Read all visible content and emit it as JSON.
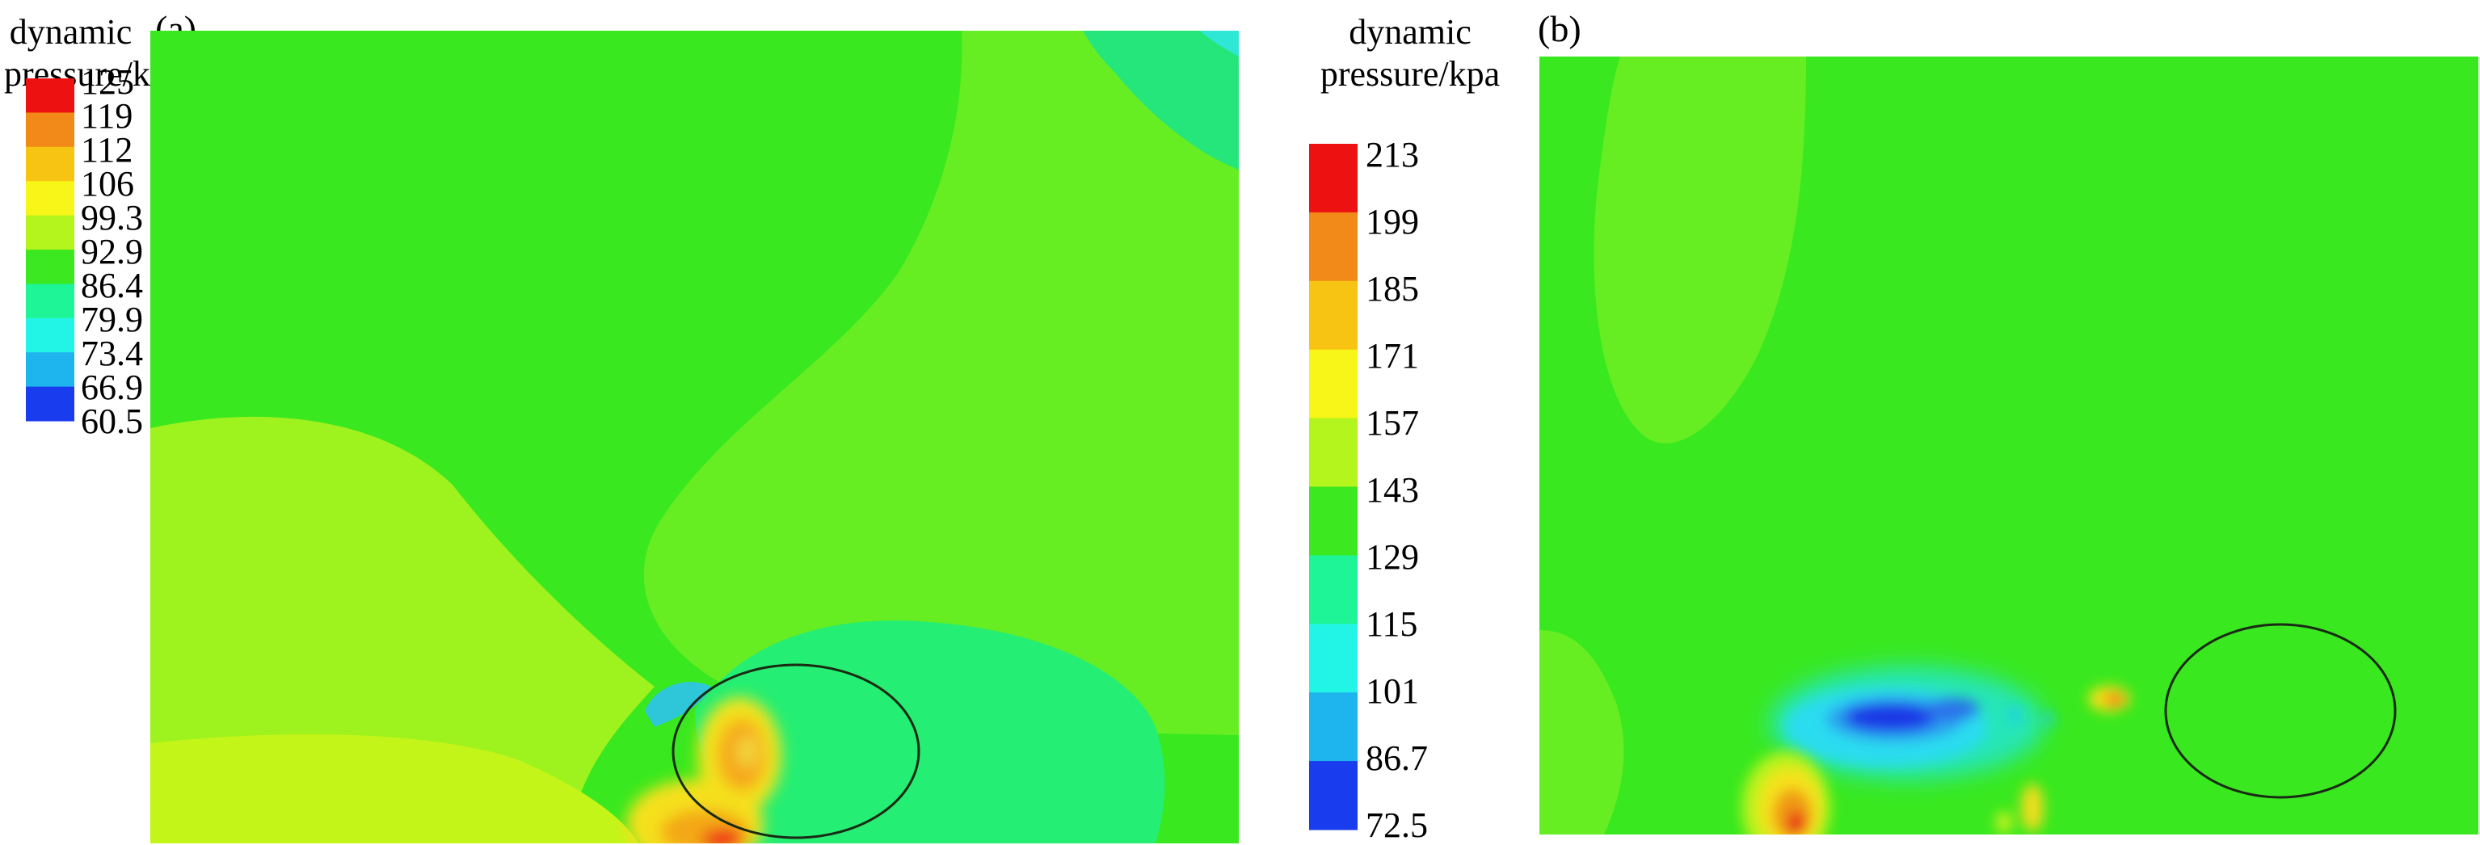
{
  "figure": {
    "panels": [
      {
        "label": "(a)",
        "colorbar_title_line1": "dynamic",
        "colorbar_title_line2": "pressure/kpa",
        "colorbar_ticks": [
          "125",
          "119",
          "112",
          "106",
          "99.3",
          "92.9",
          "86.4",
          "79.9",
          "73.4",
          "66.9",
          "60.5"
        ]
      },
      {
        "label": "(b)",
        "colorbar_title_line1": "dynamic",
        "colorbar_title_line2": "pressure/kpa",
        "colorbar_ticks": [
          "213",
          "199",
          "185",
          "171",
          "157",
          "143",
          "129",
          "115",
          "101",
          "86.7",
          "72.5"
        ]
      }
    ]
  },
  "chart_data": [
    {
      "type": "heatmap",
      "title": "(a)",
      "quantity": "dynamic pressure",
      "unit": "kpa",
      "colorbar": {
        "min": 60.5,
        "max": 125,
        "levels": [
          125,
          119,
          112,
          106,
          99.3,
          92.9,
          86.4,
          79.9,
          73.4,
          66.9,
          60.5
        ],
        "colors": [
          "#ee1111",
          "#f28a1a",
          "#f8c413",
          "#f8f518",
          "#b4f51e",
          "#3ce81f",
          "#1ef596",
          "#22f5e6",
          "#1eb4ee",
          "#1a3cef"
        ]
      },
      "annotation": "ellipse marking high-pressure region"
    },
    {
      "type": "heatmap",
      "title": "(b)",
      "quantity": "dynamic pressure",
      "unit": "kpa",
      "colorbar": {
        "min": 72.5,
        "max": 213,
        "levels": [
          213,
          199,
          185,
          171,
          157,
          143,
          129,
          115,
          101,
          86.7,
          72.5
        ],
        "colors": [
          "#ee1111",
          "#f28a1a",
          "#f8c413",
          "#f8f518",
          "#b4f51e",
          "#3ce81f",
          "#1ef596",
          "#22f5e6",
          "#1eb4ee",
          "#1a3cef"
        ]
      },
      "annotation": "ellipse marking low-pressure region"
    }
  ]
}
